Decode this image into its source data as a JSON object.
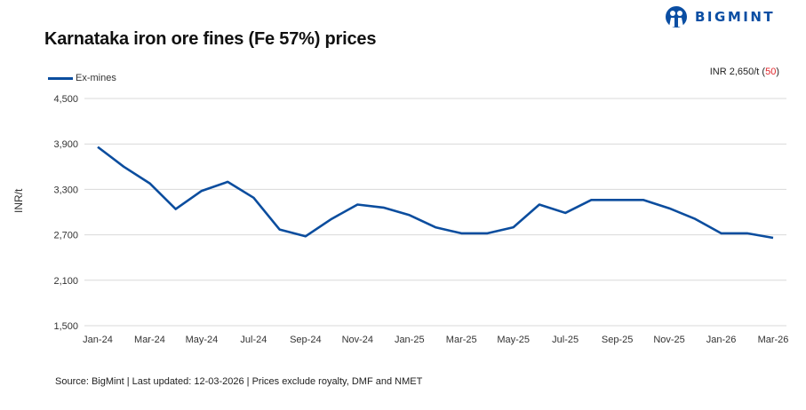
{
  "header": {
    "title": "Karnataka iron ore fines (Fe 57%) prices",
    "brand": "BIGMINT"
  },
  "price_badge": {
    "prefix": "INR 2,650/t (",
    "change": "50",
    "suffix": ")",
    "change_color": "#e0262b"
  },
  "footer": {
    "source": "Source: BigMint | Last updated: 12-03-2026 | Prices exclude royalty, DMF and NMET"
  },
  "colors": {
    "line": "#0b4d9e",
    "grid": "#d9d9d9",
    "brand": "#0a4ea3"
  },
  "chart_data": {
    "type": "line",
    "title": "Karnataka iron ore fines (Fe 57%) prices",
    "xlabel": "",
    "ylabel": "INR/t",
    "ylim": [
      1500,
      4500
    ],
    "yticks": [
      1500,
      2100,
      2700,
      3300,
      3900,
      4500
    ],
    "ytick_labels": [
      "1,500",
      "2,100",
      "2,700",
      "3,300",
      "3,900",
      "4,500"
    ],
    "grid": true,
    "legend_position": "top-left",
    "x": [
      "Jan-24",
      "Feb-24",
      "Mar-24",
      "Apr-24",
      "May-24",
      "Jun-24",
      "Jul-24",
      "Aug-24",
      "Sep-24",
      "Oct-24",
      "Nov-24",
      "Dec-24",
      "Jan-25",
      "Feb-25",
      "Mar-25",
      "Apr-25",
      "May-25",
      "Jun-25",
      "Jul-25",
      "Aug-25",
      "Sep-25",
      "Oct-25",
      "Nov-25",
      "Dec-25",
      "Jan-26",
      "Feb-26",
      "Mar-26"
    ],
    "xtick_labels": [
      "Jan-24",
      "Mar-24",
      "May-24",
      "Jul-24",
      "Sep-24",
      "Nov-24",
      "Jan-25",
      "Mar-25",
      "May-25",
      "Jul-25",
      "Sep-25",
      "Nov-25",
      "Jan-26",
      "Mar-26"
    ],
    "series": [
      {
        "name": "Ex-mines",
        "values": [
          3860,
          3600,
          3380,
          3040,
          3280,
          3400,
          3190,
          2770,
          2680,
          2910,
          3100,
          3060,
          2960,
          2800,
          2720,
          2720,
          2800,
          3100,
          2990,
          3160,
          3160,
          3160,
          3050,
          2910,
          2720,
          2720,
          2660
        ]
      }
    ]
  }
}
